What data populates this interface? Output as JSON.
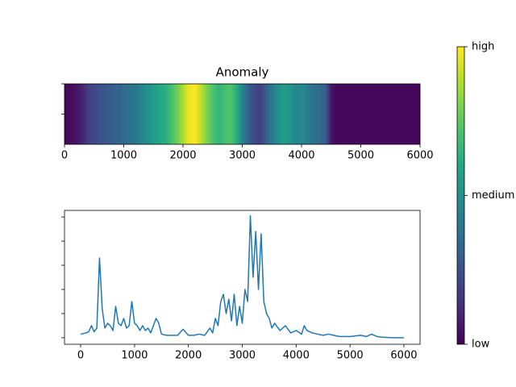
{
  "chart_data": [
    {
      "type": "heatmap",
      "title": "Anomaly",
      "colormap": "viridis",
      "x": [
        0,
        100,
        200,
        300,
        400,
        500,
        600,
        700,
        800,
        900,
        1000,
        1100,
        1200,
        1300,
        1400,
        1500,
        1600,
        1700,
        1800,
        1900,
        2000,
        2100,
        2200,
        2300,
        2400,
        2500,
        2600,
        2700,
        2800,
        2900,
        3000,
        3100,
        3200,
        3300,
        3400,
        3500,
        3600,
        3700,
        3800,
        3900,
        4000,
        4100,
        4200,
        4300,
        4400,
        4500,
        4600,
        4700,
        4800,
        4900,
        5000,
        5100,
        5200,
        5300,
        5400,
        5500,
        5600,
        5700,
        5800,
        5900,
        6000
      ],
      "values": [
        0.02,
        0.03,
        0.05,
        0.1,
        0.18,
        0.22,
        0.25,
        0.27,
        0.3,
        0.32,
        0.35,
        0.38,
        0.4,
        0.45,
        0.5,
        0.55,
        0.6,
        0.62,
        0.7,
        0.78,
        0.88,
        0.98,
        1.0,
        0.9,
        0.8,
        0.72,
        0.65,
        0.7,
        0.72,
        0.62,
        0.45,
        0.3,
        0.22,
        0.18,
        0.3,
        0.4,
        0.5,
        0.55,
        0.52,
        0.45,
        0.48,
        0.42,
        0.38,
        0.35,
        0.3,
        0.05,
        0.02,
        0.02,
        0.02,
        0.02,
        0.02,
        0.02,
        0.02,
        0.02,
        0.02,
        0.02,
        0.02,
        0.02,
        0.02,
        0.02,
        0.02
      ],
      "xlim": [
        0,
        6000
      ],
      "xticks": [
        0,
        1000,
        2000,
        3000,
        4000,
        5000,
        6000
      ],
      "ylim": [
        0.5,
        -0.5
      ],
      "yticks": [
        -0.5,
        0
      ],
      "clim": [
        0,
        1
      ],
      "colorbar_ticks": [
        {
          "value": 0,
          "label": "low"
        },
        {
          "value": 0.5,
          "label": "medium"
        },
        {
          "value": 1,
          "label": "high"
        }
      ]
    },
    {
      "type": "line",
      "color": "#1f77b4",
      "x": [
        0,
        100,
        150,
        200,
        250,
        300,
        350,
        400,
        450,
        500,
        550,
        600,
        650,
        700,
        750,
        800,
        850,
        900,
        950,
        1000,
        1050,
        1100,
        1150,
        1200,
        1250,
        1300,
        1400,
        1450,
        1500,
        1600,
        1700,
        1800,
        1900,
        2000,
        2100,
        2200,
        2300,
        2400,
        2450,
        2500,
        2550,
        2600,
        2650,
        2700,
        2750,
        2800,
        2850,
        2900,
        2950,
        3000,
        3050,
        3100,
        3150,
        3200,
        3250,
        3300,
        3350,
        3400,
        3450,
        3500,
        3550,
        3600,
        3700,
        3800,
        3900,
        4000,
        4100,
        4150,
        4200,
        4300,
        4400,
        4500,
        4600,
        4700,
        4800,
        5000,
        5200,
        5300,
        5400,
        5500,
        5600,
        5800,
        6000
      ],
      "values": [
        0.15,
        0.2,
        0.25,
        0.5,
        0.25,
        0.4,
        3.3,
        1.2,
        0.4,
        0.6,
        0.5,
        0.3,
        1.3,
        0.6,
        0.5,
        0.8,
        0.4,
        0.5,
        1.5,
        0.6,
        0.5,
        0.3,
        0.5,
        0.3,
        0.4,
        0.2,
        0.8,
        0.6,
        0.15,
        0.1,
        0.1,
        0.1,
        0.35,
        0.1,
        0.1,
        0.15,
        0.1,
        0.4,
        0.2,
        0.8,
        0.5,
        1.5,
        1.8,
        1.0,
        1.6,
        0.7,
        1.8,
        0.5,
        1.3,
        0.6,
        2.0,
        1.5,
        5.05,
        2.5,
        4.4,
        2.0,
        4.3,
        1.5,
        1.0,
        0.8,
        0.4,
        0.6,
        0.3,
        0.5,
        0.2,
        0.3,
        0.15,
        0.5,
        0.3,
        0.2,
        0.15,
        0.1,
        0.15,
        0.1,
        0.05,
        0.05,
        0.1,
        0.05,
        0.15,
        0.05,
        0.02,
        0.0,
        0.0
      ],
      "xlim": [
        -300,
        6300
      ],
      "xticks": [
        0,
        1000,
        2000,
        3000,
        4000,
        5000,
        6000
      ],
      "ylim": [
        -0.27,
        5.27
      ],
      "yticks": [
        0,
        1,
        2,
        3,
        4,
        5
      ]
    }
  ]
}
